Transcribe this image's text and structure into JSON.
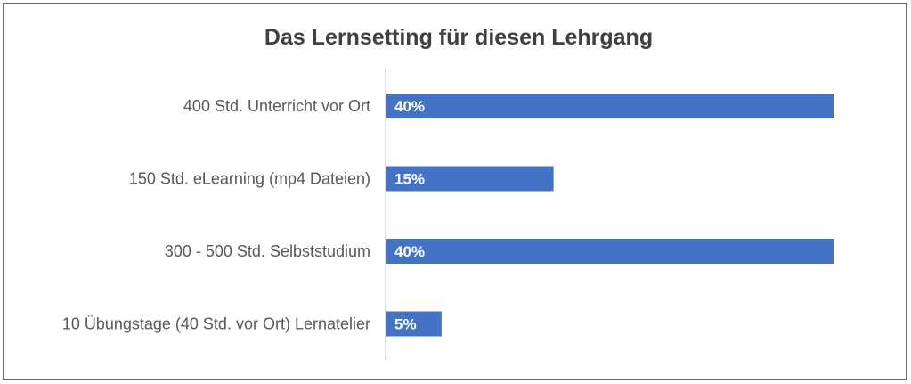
{
  "chart_data": {
    "type": "bar",
    "orientation": "horizontal",
    "title": "Das Lernsetting für diesen Lehrgang",
    "categories": [
      "400 Std. Unterricht vor Ort",
      "150 Std. eLearning (mp4 Dateien)",
      "300 - 500 Std. Selbststudium",
      "10 Übungstage (40 Std. vor Ort) Lernatelier"
    ],
    "values": [
      40,
      15,
      40,
      5
    ],
    "data_labels": [
      "40%",
      "15%",
      "40%",
      "5%"
    ],
    "unit": "%",
    "xlim": [
      0,
      40
    ],
    "grid": false,
    "legend": "none",
    "bar_color": "#4472c4",
    "label_color": "#ffffff",
    "axis_color": "#d0d0d0",
    "frame_color": "#4a6fa5"
  }
}
